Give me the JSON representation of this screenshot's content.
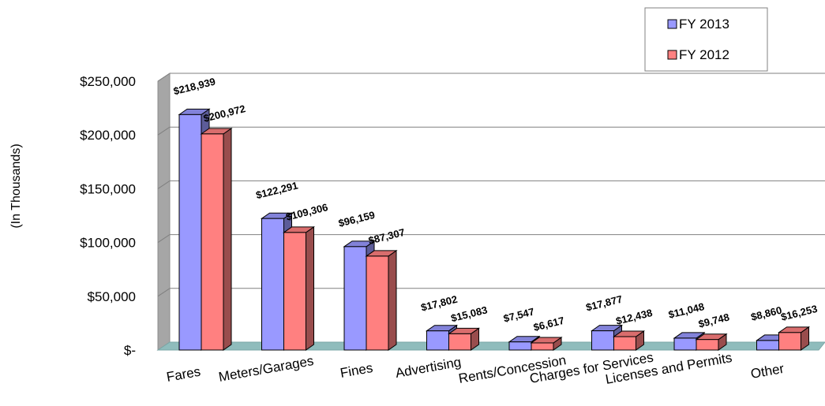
{
  "chart_data": {
    "type": "bar",
    "title": "",
    "xlabel": "",
    "ylabel": "(In Thousands)",
    "ylim": [
      0,
      250000
    ],
    "yticks": [
      0,
      50000,
      100000,
      150000,
      200000,
      250000
    ],
    "ytick_labels": [
      "$-",
      "$50,000",
      "$100,000",
      "$150,000",
      "$200,000",
      "$250,000"
    ],
    "grid": true,
    "legend_position": "top-right",
    "categories": [
      "Fares",
      "Meters/Garages",
      "Fines",
      "Advertising",
      "Rents/Concession",
      "Charges for Services",
      "Licenses and Permits",
      "Other"
    ],
    "series": [
      {
        "name": "FY 2013",
        "color": "#9999ff",
        "values": [
          218939,
          122291,
          96159,
          17802,
          7547,
          17877,
          11048,
          8860
        ],
        "labels": [
          "$218,939",
          "$122,291",
          "$96,159",
          "$17,802",
          "$7,547",
          "$17,877",
          "$11,048",
          "$8,860"
        ]
      },
      {
        "name": "FY 2012",
        "color": "#ff8080",
        "values": [
          200972,
          109306,
          87307,
          15083,
          6617,
          12438,
          9748,
          16253
        ],
        "labels": [
          "$200,972",
          "$109,306",
          "$87,307",
          "$15,083",
          "$6,617",
          "$12,438",
          "$9,748",
          "$16,253"
        ]
      }
    ]
  }
}
